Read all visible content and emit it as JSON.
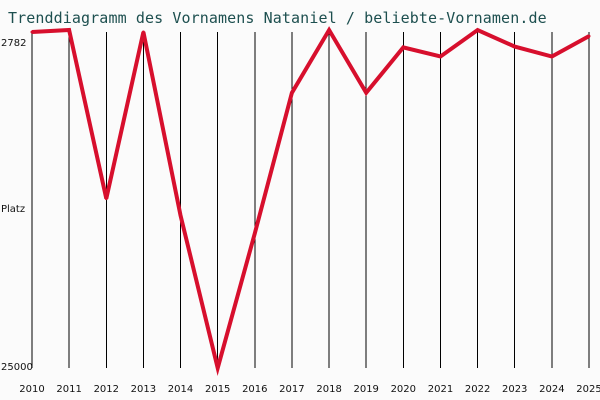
{
  "title": "Trenddiagramm des Vornamens Nataniel / beliebte-Vornamen.de",
  "colors": {
    "background": "#fbfbfb",
    "title": "#1d4f4f",
    "line": "#d70f2d",
    "grid": "#000000",
    "text": "#111111"
  },
  "chart_data": {
    "type": "line",
    "title": "Trenddiagramm des Vornamens Nataniel / beliebte-Vornamen.de",
    "xlabel": "",
    "ylabel": "Platz",
    "x": [
      "2010",
      "2011",
      "2012",
      "2013",
      "2014",
      "2015",
      "2016",
      "2017",
      "2018",
      "2019",
      "2020",
      "2021",
      "2022",
      "2023",
      "2024",
      "2025"
    ],
    "series": [
      {
        "values": [
          2782,
          2650,
          13800,
          2782,
          14900,
          25000,
          16100,
          6800,
          2650,
          6800,
          3800,
          4400,
          2650,
          3750,
          4400,
          3050
        ]
      }
    ],
    "y_ticks": [
      "2782",
      "Platz",
      "25000"
    ],
    "ylim": [
      2782,
      25000
    ],
    "y_inverted": true,
    "grid": {
      "vertical": true,
      "horizontal": false
    },
    "legend": "none"
  }
}
